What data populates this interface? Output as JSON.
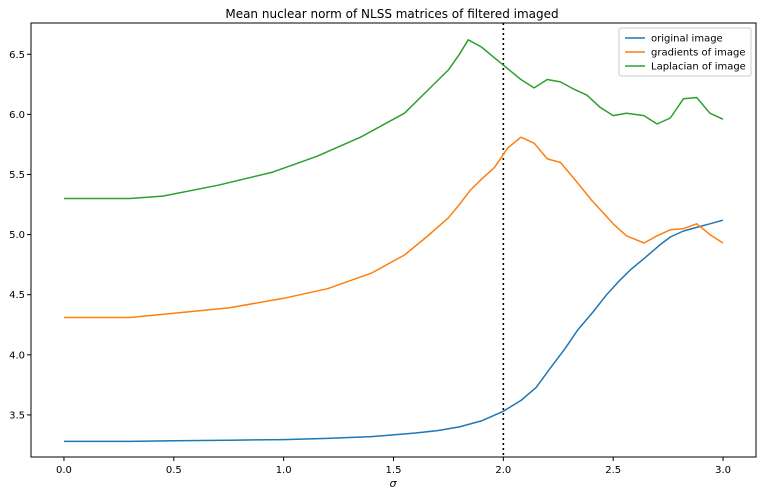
{
  "chart_data": {
    "type": "line",
    "title": "Mean nuclear norm of NLSS matrices of filtered imaged",
    "xlabel": "σ",
    "ylabel": "",
    "xlim": [
      -0.15,
      3.15
    ],
    "ylim": [
      3.15,
      6.76
    ],
    "xticks": [
      0.0,
      0.5,
      1.0,
      1.5,
      2.0,
      2.5,
      3.0
    ],
    "xtick_labels": [
      "0.0",
      "0.5",
      "1.0",
      "1.5",
      "2.0",
      "2.5",
      "3.0"
    ],
    "yticks": [
      3.5,
      4.0,
      4.5,
      5.0,
      5.5,
      6.0,
      6.5
    ],
    "ytick_labels": [
      "3.5",
      "4.0",
      "4.5",
      "5.0",
      "5.5",
      "6.0",
      "6.5"
    ],
    "vline": {
      "x": 2.0,
      "style": "dotted",
      "color": "#000000"
    },
    "legend_position": "top-right",
    "grid": false,
    "series": [
      {
        "name": "original image",
        "color": "#1f77b4",
        "x": [
          0.0,
          0.3,
          0.5,
          0.75,
          1.0,
          1.2,
          1.4,
          1.6,
          1.7,
          1.8,
          1.9,
          2.0,
          2.08,
          2.15,
          2.21,
          2.28,
          2.34,
          2.41,
          2.47,
          2.53,
          2.58,
          2.64,
          2.71,
          2.76,
          2.82,
          2.88,
          2.94,
          3.0
        ],
        "y": [
          3.28,
          3.28,
          3.285,
          3.29,
          3.295,
          3.305,
          3.32,
          3.35,
          3.37,
          3.4,
          3.45,
          3.53,
          3.62,
          3.73,
          3.88,
          4.05,
          4.21,
          4.36,
          4.5,
          4.62,
          4.71,
          4.8,
          4.91,
          4.98,
          5.03,
          5.06,
          5.09,
          5.12
        ]
      },
      {
        "name": "gradients of image",
        "color": "#ff7f0e",
        "x": [
          0.0,
          0.3,
          0.5,
          0.75,
          1.0,
          1.2,
          1.4,
          1.55,
          1.65,
          1.75,
          1.8,
          1.85,
          1.9,
          1.96,
          2.02,
          2.08,
          2.14,
          2.2,
          2.26,
          2.32,
          2.4,
          2.5,
          2.56,
          2.64,
          2.7,
          2.76,
          2.82,
          2.88,
          2.94,
          3.0
        ],
        "y": [
          4.31,
          4.31,
          4.345,
          4.39,
          4.47,
          4.55,
          4.68,
          4.83,
          4.98,
          5.14,
          5.25,
          5.37,
          5.46,
          5.56,
          5.72,
          5.81,
          5.76,
          5.63,
          5.6,
          5.47,
          5.29,
          5.09,
          4.99,
          4.93,
          4.99,
          5.04,
          5.05,
          5.09,
          5.0,
          4.93
        ]
      },
      {
        "name": "Laplacian of image",
        "color": "#2ca02c",
        "x": [
          0.0,
          0.3,
          0.45,
          0.7,
          0.95,
          1.15,
          1.35,
          1.55,
          1.65,
          1.75,
          1.8,
          1.84,
          1.9,
          1.96,
          2.02,
          2.08,
          2.14,
          2.2,
          2.26,
          2.32,
          2.38,
          2.44,
          2.5,
          2.56,
          2.64,
          2.7,
          2.76,
          2.82,
          2.88,
          2.94,
          3.0
        ],
        "y": [
          5.3,
          5.3,
          5.32,
          5.41,
          5.52,
          5.65,
          5.81,
          6.01,
          6.19,
          6.37,
          6.5,
          6.62,
          6.56,
          6.47,
          6.38,
          6.29,
          6.22,
          6.29,
          6.27,
          6.21,
          6.16,
          6.06,
          5.99,
          6.01,
          5.99,
          5.92,
          5.97,
          6.13,
          6.14,
          6.01,
          5.96
        ]
      }
    ]
  }
}
